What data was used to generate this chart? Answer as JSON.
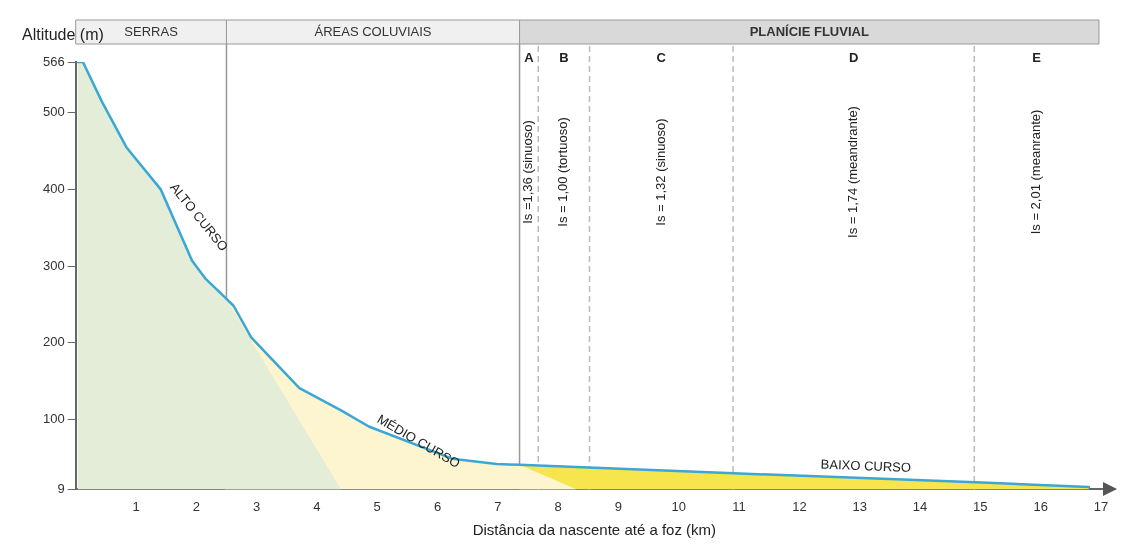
{
  "chart_data": {
    "type": "line",
    "xlabel": "Distância da nascente até a foz (km)",
    "ylabel": "Altitude (m)",
    "xlim": [
      0,
      17.2
    ],
    "xticks": [
      1,
      2,
      3,
      4,
      5,
      6,
      7,
      8,
      9,
      10,
      11,
      12,
      13,
      14,
      15,
      16,
      17
    ],
    "ylim": [
      9,
      566
    ],
    "yticks": [
      9,
      100,
      200,
      300,
      400,
      500,
      566
    ],
    "series": [
      {
        "type": "area",
        "color": "#f6e54d",
        "x": [
          7.36,
          10.91,
          12.28,
          15.03,
          16.8
        ],
        "values": [
          41,
          30,
          26,
          18,
          12
        ]
      },
      {
        "type": "area",
        "color": "#fdf5d0",
        "x": [
          2.48,
          2.62,
          2.91,
          3.71,
          4.4,
          4.86,
          6.24,
          6.98,
          7.36,
          8.31
        ],
        "values": [
          259,
          248,
          207,
          141,
          112,
          91,
          49,
          42,
          41,
          9
        ]
      },
      {
        "type": "area",
        "color": "#e4edd8",
        "x": [
          0.03,
          0.12,
          0.43,
          0.84,
          1.41,
          1.93,
          2.16,
          2.48,
          4.4
        ],
        "values": [
          566,
          566,
          515,
          455,
          400,
          307,
          283,
          259,
          9
        ]
      },
      {
        "color": "#3aa7d4",
        "x": [
          0.03,
          0.12,
          0.43,
          0.84,
          1.41,
          1.93,
          2.16,
          2.48,
          2.62,
          2.91,
          3.71,
          4.4,
          4.86,
          6.24,
          6.98,
          7.36,
          10.91,
          12.28,
          15.03,
          16.8
        ],
        "values": [
          566,
          566,
          515,
          455,
          400,
          307,
          283,
          259,
          248,
          207,
          141,
          112,
          91,
          49,
          42,
          41,
          30,
          26,
          18,
          12
        ]
      }
    ],
    "ref_lines": [
      {
        "axis": "x",
        "value": 2.5,
        "line_style": "solid",
        "color": "#999999"
      },
      {
        "axis": "x",
        "value": 7.36,
        "line_style": "solid",
        "color": "#999999"
      },
      {
        "axis": "x",
        "value": 7.67,
        "line_style": "dashed",
        "color": "#bbbbbb"
      },
      {
        "axis": "x",
        "value": 8.52,
        "line_style": "dashed",
        "color": "#bbbbbb"
      },
      {
        "axis": "x",
        "value": 10.9,
        "line_style": "dashed",
        "color": "#bbbbbb"
      },
      {
        "axis": "x",
        "value": 14.9,
        "line_style": "dashed",
        "color": "#bbbbbb"
      }
    ],
    "annotations": [
      {
        "text": "ALTO CURSO",
        "x": 1.41,
        "y": 400
      },
      {
        "text": "MÉDIO CURSO",
        "x": 4.86,
        "y": 91
      },
      {
        "text": "BAIXO CURSO",
        "x": 12.28,
        "y": 26
      },
      "SERRAS",
      "ÁREAS COLUVIAIS",
      "PLANÍCIE FLUVIAL",
      "A",
      "Is =1,36 (sinuoso)",
      "B",
      "Is = 1,00 (tortuoso)",
      "C",
      "Is = 1,32 (sinuoso)",
      "D",
      "Is = 1,74 (meandrante)",
      "E",
      "Is = 2,01 (meanrante)"
    ],
    "legend": false,
    "grid": false,
    "marker": "none",
    "line_style": "solid"
  }
}
